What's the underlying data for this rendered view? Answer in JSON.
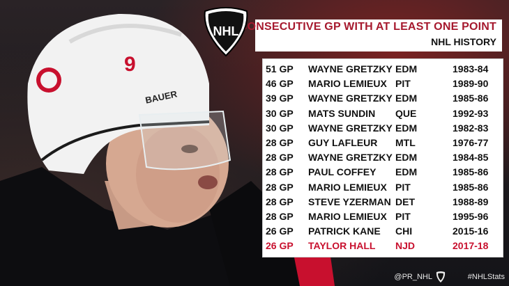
{
  "header": {
    "title": "CONSECUTIVE GP WITH AT LEAST ONE POINT",
    "subtitle": "NHL HISTORY"
  },
  "logo": {
    "text": "NHL",
    "icon": "nhl-shield-logo"
  },
  "helmet": {
    "number": "9",
    "brand": "BAUER"
  },
  "rows": [
    {
      "gp": "51 GP",
      "name": "WAYNE GRETZKY",
      "team": "EDM",
      "season": "1983-84"
    },
    {
      "gp": "46 GP",
      "name": "MARIO LEMIEUX",
      "team": "PIT",
      "season": "1989-90"
    },
    {
      "gp": "39 GP",
      "name": "WAYNE GRETZKY",
      "team": "EDM",
      "season": "1985-86"
    },
    {
      "gp": "30 GP",
      "name": "MATS SUNDIN",
      "team": "QUE",
      "season": "1992-93"
    },
    {
      "gp": "30 GP",
      "name": "WAYNE GRETZKY",
      "team": "EDM",
      "season": "1982-83"
    },
    {
      "gp": "28 GP",
      "name": "GUY LAFLEUR",
      "team": "MTL",
      "season": "1976-77"
    },
    {
      "gp": "28 GP",
      "name": "WAYNE GRETZKY",
      "team": "EDM",
      "season": "1984-85"
    },
    {
      "gp": "28 GP",
      "name": "PAUL COFFEY",
      "team": "EDM",
      "season": "1985-86"
    },
    {
      "gp": "28 GP",
      "name": "MARIO LEMIEUX",
      "team": "PIT",
      "season": "1985-86"
    },
    {
      "gp": "28 GP",
      "name": "STEVE YZERMAN",
      "team": "DET",
      "season": "1988-89"
    },
    {
      "gp": "28 GP",
      "name": "MARIO LEMIEUX",
      "team": "PIT",
      "season": "1995-96"
    },
    {
      "gp": "26 GP",
      "name": "PATRICK KANE",
      "team": "CHI",
      "season": "2015-16"
    },
    {
      "gp": "26 GP",
      "name": "TAYLOR HALL",
      "team": "NJD",
      "season": "2017-18"
    }
  ],
  "highlight_color": "#c8102e",
  "title_color": "#a6192e",
  "footer": {
    "handle": "@PR_NHL",
    "hashtag": "#NHLStats"
  }
}
